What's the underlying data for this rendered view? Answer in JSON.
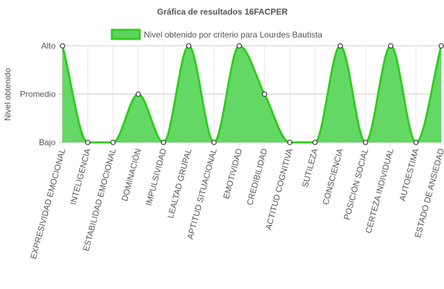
{
  "chart_data": {
    "type": "area",
    "title": "Gráfica de resultados 16FACPER",
    "ylabel": "Nivel obtenido",
    "xlabel": "",
    "y_categories": [
      "Bajo",
      "Promedio",
      "Alto"
    ],
    "categories": [
      "EXPRESIVIDAD EMOCIONAL",
      "INTELIGENCIA",
      "ESTABILIDAD EMOCIONAL",
      "DOMINACIÓN",
      "IMPULSIVIDAD",
      "LEALTAD GRUPAL",
      "APTITUD SITUACIONAL",
      "EMOTIVIDAD",
      "CREDIBILIDAD",
      "ACTITUD COGNITIVA",
      "SUTILEZA",
      "CONSCIENCIA",
      "POSICIÓN SOCIAL",
      "CERTEZA INDIVIDUAL",
      "AUTOESTIMA",
      "ESTADO DE ANSIEDAD"
    ],
    "series": [
      {
        "name": "Nivel obtenido por criterio para Lourdes Bautista",
        "values": [
          "Alto",
          "Bajo",
          "Bajo",
          "Promedio",
          "Bajo",
          "Alto",
          "Bajo",
          "Alto",
          "Promedio",
          "Bajo",
          "Bajo",
          "Alto",
          "Bajo",
          "Alto",
          "Bajo",
          "Alto"
        ]
      }
    ],
    "grid": true,
    "legend_position": "top",
    "colors": {
      "line": "#2ecc1f",
      "fill": "#5cd65c",
      "point_fill": "#ffffff",
      "point_stroke": "#333333",
      "grid": "#e6e6e6",
      "text": "#555555"
    }
  }
}
